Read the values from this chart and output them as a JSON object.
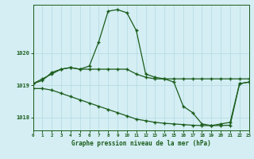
{
  "title": "Graphe pression niveau de la mer (hPa)",
  "background_color": "#d4eef4",
  "grid_color": "#b8dde4",
  "line_color": "#1a5c1a",
  "marker_color": "#1a5c1a",
  "xmin": 0,
  "xmax": 23,
  "ymin": 1017.6,
  "ymax": 1021.5,
  "yticks": [
    1018,
    1019,
    1020
  ],
  "xticks": [
    0,
    1,
    2,
    3,
    4,
    5,
    6,
    7,
    8,
    9,
    10,
    11,
    12,
    13,
    14,
    15,
    16,
    17,
    18,
    19,
    20,
    21,
    22,
    23
  ],
  "series1_x": [
    0,
    1,
    2,
    3,
    4,
    5,
    6,
    7,
    8,
    9,
    10,
    11,
    12,
    13,
    14,
    15,
    16,
    17,
    18,
    19,
    20,
    21,
    22,
    23
  ],
  "series1_y": [
    1019.05,
    1019.15,
    1019.4,
    1019.5,
    1019.55,
    1019.5,
    1019.6,
    1020.35,
    1021.3,
    1021.35,
    1021.25,
    1020.7,
    1019.35,
    1019.25,
    1019.2,
    1019.1,
    1018.35,
    1018.15,
    1017.8,
    1017.75,
    1017.8,
    1017.85,
    1019.05,
    1019.1
  ],
  "series2_x": [
    0,
    1,
    2,
    3,
    4,
    5,
    6,
    7,
    8,
    9,
    10,
    11,
    12,
    13,
    14,
    15,
    16,
    17,
    18,
    19,
    20,
    21,
    22,
    23
  ],
  "series2_y": [
    1019.05,
    1019.2,
    1019.35,
    1019.5,
    1019.55,
    1019.5,
    1019.5,
    1019.5,
    1019.5,
    1019.5,
    1019.5,
    1019.35,
    1019.25,
    1019.2,
    1019.2,
    1019.2,
    1019.2,
    1019.2,
    1019.2,
    1019.2,
    1019.2,
    1019.2,
    1019.2,
    1019.2
  ],
  "series3_x": [
    0,
    1,
    2,
    3,
    4,
    5,
    6,
    7,
    8,
    9,
    10,
    11,
    12,
    13,
    14,
    15,
    16,
    17,
    18,
    19,
    20,
    21,
    22,
    23
  ],
  "series3_y": [
    1018.9,
    1018.9,
    1018.85,
    1018.75,
    1018.65,
    1018.55,
    1018.45,
    1018.35,
    1018.25,
    1018.15,
    1018.05,
    1017.95,
    1017.9,
    1017.85,
    1017.82,
    1017.8,
    1017.78,
    1017.76,
    1017.75,
    1017.75,
    1017.75,
    1017.76,
    1019.05,
    1019.1
  ]
}
